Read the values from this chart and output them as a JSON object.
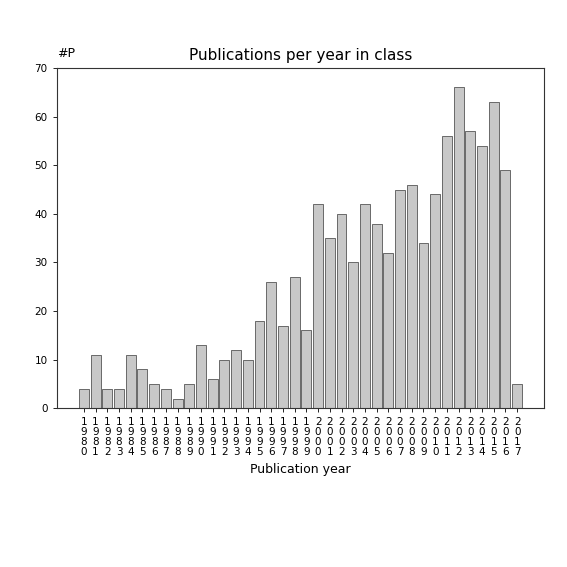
{
  "title": "Publications per year in class",
  "xlabel": "Publication year",
  "ylabel": "#P",
  "ylim": [
    0,
    70
  ],
  "yticks": [
    0,
    10,
    20,
    30,
    40,
    50,
    60,
    70
  ],
  "categories": [
    "1980",
    "1981",
    "1982",
    "1983",
    "1984",
    "1985",
    "1986",
    "1987",
    "1988",
    "1989",
    "1990",
    "1991",
    "1992",
    "1993",
    "1994",
    "1995",
    "1996",
    "1997",
    "1998",
    "1999",
    "2000",
    "2001",
    "2002",
    "2003",
    "2004",
    "2005",
    "2006",
    "2007",
    "2008",
    "2009",
    "2010",
    "2011",
    "2012",
    "2013",
    "2014",
    "2015",
    "2016",
    "2017"
  ],
  "values": [
    4,
    11,
    4,
    4,
    11,
    8,
    5,
    4,
    2,
    5,
    13,
    6,
    10,
    12,
    10,
    18,
    26,
    17,
    27,
    16,
    42,
    35,
    40,
    30,
    42,
    38,
    32,
    45,
    46,
    34,
    44,
    56,
    66,
    57,
    54,
    63,
    49,
    5
  ],
  "bar_color": "#c8c8c8",
  "bar_edge_color": "#555555",
  "background_color": "#ffffff",
  "title_fontsize": 11,
  "axis_label_fontsize": 9,
  "tick_fontsize": 7.5
}
